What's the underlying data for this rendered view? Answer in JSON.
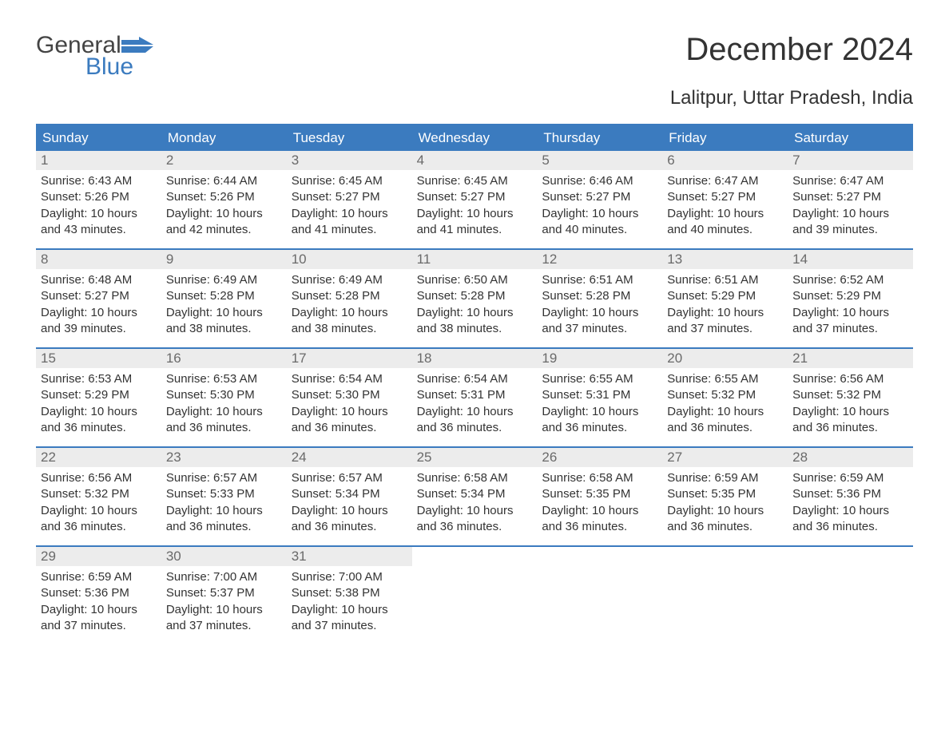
{
  "brand": {
    "word1": "General",
    "word2": "Blue",
    "flag_color": "#3b7bbf",
    "text_gray": "#444444"
  },
  "title": "December 2024",
  "subtitle": "Lalitpur, Uttar Pradesh, India",
  "colors": {
    "header_bg": "#3b7bbf",
    "header_text": "#ffffff",
    "daynum_bg": "#ececec",
    "daynum_text": "#6a6a6a",
    "body_text": "#333333",
    "page_bg": "#ffffff"
  },
  "day_headers": [
    "Sunday",
    "Monday",
    "Tuesday",
    "Wednesday",
    "Thursday",
    "Friday",
    "Saturday"
  ],
  "weeks": [
    [
      {
        "n": "1",
        "sr": "Sunrise: 6:43 AM",
        "ss": "Sunset: 5:26 PM",
        "d1": "Daylight: 10 hours",
        "d2": "and 43 minutes."
      },
      {
        "n": "2",
        "sr": "Sunrise: 6:44 AM",
        "ss": "Sunset: 5:26 PM",
        "d1": "Daylight: 10 hours",
        "d2": "and 42 minutes."
      },
      {
        "n": "3",
        "sr": "Sunrise: 6:45 AM",
        "ss": "Sunset: 5:27 PM",
        "d1": "Daylight: 10 hours",
        "d2": "and 41 minutes."
      },
      {
        "n": "4",
        "sr": "Sunrise: 6:45 AM",
        "ss": "Sunset: 5:27 PM",
        "d1": "Daylight: 10 hours",
        "d2": "and 41 minutes."
      },
      {
        "n": "5",
        "sr": "Sunrise: 6:46 AM",
        "ss": "Sunset: 5:27 PM",
        "d1": "Daylight: 10 hours",
        "d2": "and 40 minutes."
      },
      {
        "n": "6",
        "sr": "Sunrise: 6:47 AM",
        "ss": "Sunset: 5:27 PM",
        "d1": "Daylight: 10 hours",
        "d2": "and 40 minutes."
      },
      {
        "n": "7",
        "sr": "Sunrise: 6:47 AM",
        "ss": "Sunset: 5:27 PM",
        "d1": "Daylight: 10 hours",
        "d2": "and 39 minutes."
      }
    ],
    [
      {
        "n": "8",
        "sr": "Sunrise: 6:48 AM",
        "ss": "Sunset: 5:27 PM",
        "d1": "Daylight: 10 hours",
        "d2": "and 39 minutes."
      },
      {
        "n": "9",
        "sr": "Sunrise: 6:49 AM",
        "ss": "Sunset: 5:28 PM",
        "d1": "Daylight: 10 hours",
        "d2": "and 38 minutes."
      },
      {
        "n": "10",
        "sr": "Sunrise: 6:49 AM",
        "ss": "Sunset: 5:28 PM",
        "d1": "Daylight: 10 hours",
        "d2": "and 38 minutes."
      },
      {
        "n": "11",
        "sr": "Sunrise: 6:50 AM",
        "ss": "Sunset: 5:28 PM",
        "d1": "Daylight: 10 hours",
        "d2": "and 38 minutes."
      },
      {
        "n": "12",
        "sr": "Sunrise: 6:51 AM",
        "ss": "Sunset: 5:28 PM",
        "d1": "Daylight: 10 hours",
        "d2": "and 37 minutes."
      },
      {
        "n": "13",
        "sr": "Sunrise: 6:51 AM",
        "ss": "Sunset: 5:29 PM",
        "d1": "Daylight: 10 hours",
        "d2": "and 37 minutes."
      },
      {
        "n": "14",
        "sr": "Sunrise: 6:52 AM",
        "ss": "Sunset: 5:29 PM",
        "d1": "Daylight: 10 hours",
        "d2": "and 37 minutes."
      }
    ],
    [
      {
        "n": "15",
        "sr": "Sunrise: 6:53 AM",
        "ss": "Sunset: 5:29 PM",
        "d1": "Daylight: 10 hours",
        "d2": "and 36 minutes."
      },
      {
        "n": "16",
        "sr": "Sunrise: 6:53 AM",
        "ss": "Sunset: 5:30 PM",
        "d1": "Daylight: 10 hours",
        "d2": "and 36 minutes."
      },
      {
        "n": "17",
        "sr": "Sunrise: 6:54 AM",
        "ss": "Sunset: 5:30 PM",
        "d1": "Daylight: 10 hours",
        "d2": "and 36 minutes."
      },
      {
        "n": "18",
        "sr": "Sunrise: 6:54 AM",
        "ss": "Sunset: 5:31 PM",
        "d1": "Daylight: 10 hours",
        "d2": "and 36 minutes."
      },
      {
        "n": "19",
        "sr": "Sunrise: 6:55 AM",
        "ss": "Sunset: 5:31 PM",
        "d1": "Daylight: 10 hours",
        "d2": "and 36 minutes."
      },
      {
        "n": "20",
        "sr": "Sunrise: 6:55 AM",
        "ss": "Sunset: 5:32 PM",
        "d1": "Daylight: 10 hours",
        "d2": "and 36 minutes."
      },
      {
        "n": "21",
        "sr": "Sunrise: 6:56 AM",
        "ss": "Sunset: 5:32 PM",
        "d1": "Daylight: 10 hours",
        "d2": "and 36 minutes."
      }
    ],
    [
      {
        "n": "22",
        "sr": "Sunrise: 6:56 AM",
        "ss": "Sunset: 5:32 PM",
        "d1": "Daylight: 10 hours",
        "d2": "and 36 minutes."
      },
      {
        "n": "23",
        "sr": "Sunrise: 6:57 AM",
        "ss": "Sunset: 5:33 PM",
        "d1": "Daylight: 10 hours",
        "d2": "and 36 minutes."
      },
      {
        "n": "24",
        "sr": "Sunrise: 6:57 AM",
        "ss": "Sunset: 5:34 PM",
        "d1": "Daylight: 10 hours",
        "d2": "and 36 minutes."
      },
      {
        "n": "25",
        "sr": "Sunrise: 6:58 AM",
        "ss": "Sunset: 5:34 PM",
        "d1": "Daylight: 10 hours",
        "d2": "and 36 minutes."
      },
      {
        "n": "26",
        "sr": "Sunrise: 6:58 AM",
        "ss": "Sunset: 5:35 PM",
        "d1": "Daylight: 10 hours",
        "d2": "and 36 minutes."
      },
      {
        "n": "27",
        "sr": "Sunrise: 6:59 AM",
        "ss": "Sunset: 5:35 PM",
        "d1": "Daylight: 10 hours",
        "d2": "and 36 minutes."
      },
      {
        "n": "28",
        "sr": "Sunrise: 6:59 AM",
        "ss": "Sunset: 5:36 PM",
        "d1": "Daylight: 10 hours",
        "d2": "and 36 minutes."
      }
    ],
    [
      {
        "n": "29",
        "sr": "Sunrise: 6:59 AM",
        "ss": "Sunset: 5:36 PM",
        "d1": "Daylight: 10 hours",
        "d2": "and 37 minutes."
      },
      {
        "n": "30",
        "sr": "Sunrise: 7:00 AM",
        "ss": "Sunset: 5:37 PM",
        "d1": "Daylight: 10 hours",
        "d2": "and 37 minutes."
      },
      {
        "n": "31",
        "sr": "Sunrise: 7:00 AM",
        "ss": "Sunset: 5:38 PM",
        "d1": "Daylight: 10 hours",
        "d2": "and 37 minutes."
      },
      null,
      null,
      null,
      null
    ]
  ]
}
